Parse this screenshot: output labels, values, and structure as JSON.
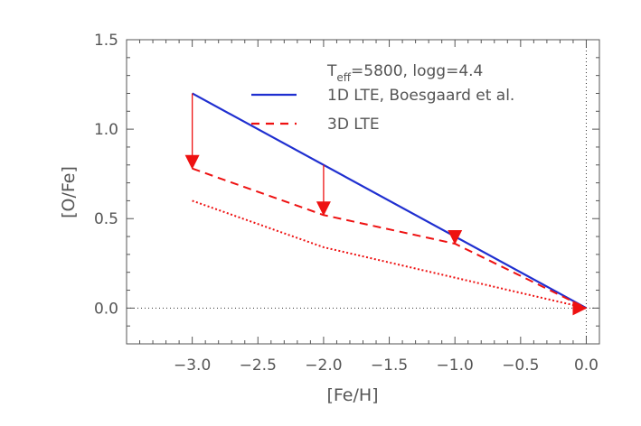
{
  "chart_data": {
    "type": "line",
    "xlabel": "[Fe/H]",
    "ylabel": "[O/Fe]",
    "xlim": [
      -3.5,
      0.1
    ],
    "ylim": [
      -0.2,
      1.5
    ],
    "x_ticks": [
      -3.0,
      -2.5,
      -2.0,
      -1.5,
      -1.0,
      -0.5,
      0.0
    ],
    "x_tick_labels": [
      "−3.0",
      "−2.5",
      "−2.0",
      "−1.5",
      "−1.0",
      "−0.5",
      "0.0"
    ],
    "y_ticks": [
      0.0,
      0.5,
      1.0,
      1.5
    ],
    "y_tick_labels": [
      "0.0",
      "0.5",
      "1.0",
      "1.5"
    ],
    "annotation": {
      "prefix": "T",
      "subscript": "eff",
      "suffix": "=5800, logg=4.4"
    },
    "reference_lines": [
      {
        "orientation": "horizontal",
        "value": 0.0,
        "style": "dotted",
        "color": "#333333"
      },
      {
        "orientation": "vertical",
        "value": 0.0,
        "style": "dotted",
        "color": "#333333"
      }
    ],
    "series": [
      {
        "name": "1D LTE, Boesgaard et al.",
        "color": "#1f2fd0",
        "style": "solid",
        "x": [
          -3.0,
          0.0
        ],
        "y": [
          1.2,
          0.0
        ]
      },
      {
        "name": "3D LTE",
        "color": "#ee1111",
        "style": "dashed",
        "x": [
          -3.0,
          -2.0,
          -1.0,
          0.0
        ],
        "y": [
          0.78,
          0.52,
          0.36,
          0.0
        ]
      },
      {
        "color": "#ee1111",
        "style": "dotted",
        "x": [
          -3.0,
          -2.0,
          -1.0,
          0.0
        ],
        "y": [
          0.6,
          0.34,
          0.17,
          0.0
        ]
      }
    ],
    "arrows": [
      {
        "x": -3.0,
        "from": 1.2,
        "to": 0.78
      },
      {
        "x": -2.0,
        "from": 0.8,
        "to": 0.52
      },
      {
        "x": -1.0,
        "from": 0.4,
        "to": 0.36
      },
      {
        "x": 0.0,
        "from": 0.0,
        "to": 0.0
      }
    ],
    "arrow_color": "#ee1111",
    "frame_color": "#555555"
  }
}
